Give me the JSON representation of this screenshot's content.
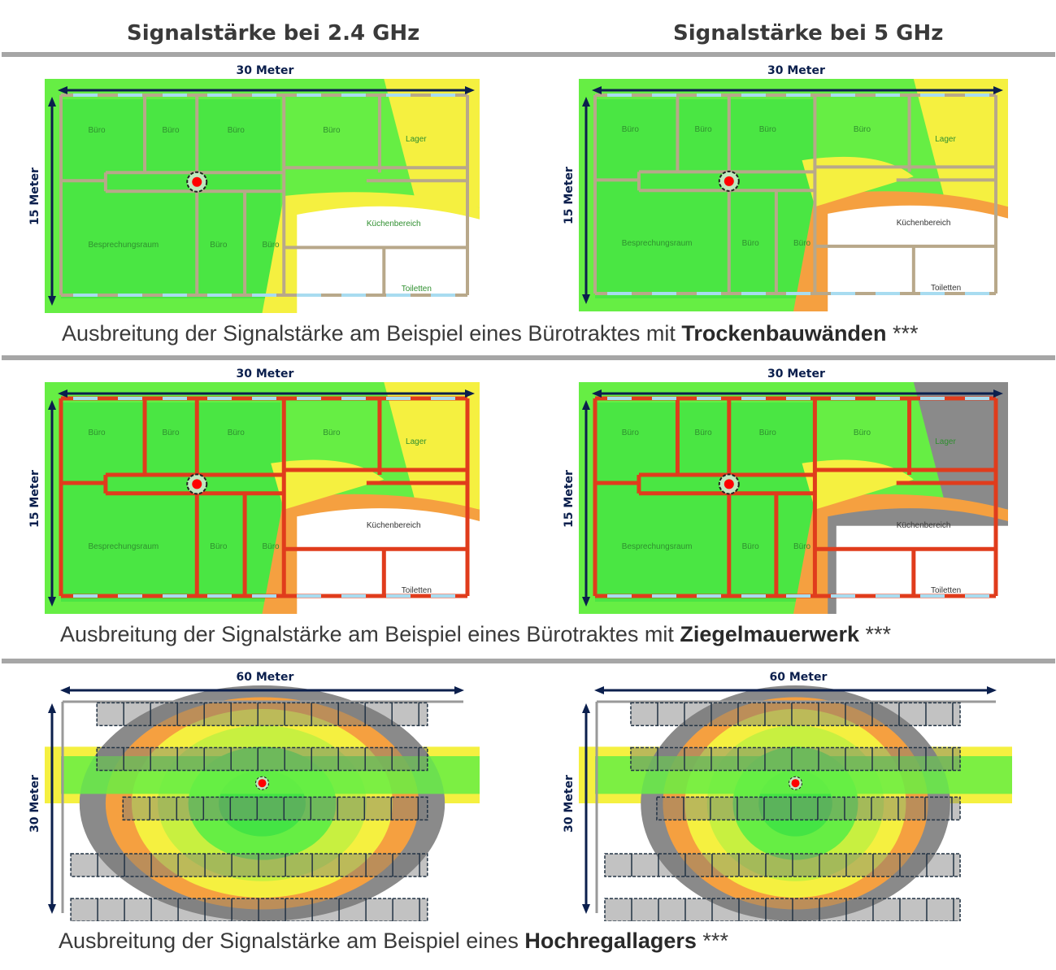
{
  "columns": {
    "left": "Signalstärke bei 2.4 GHz",
    "right": "Signalstärke bei 5 GHz"
  },
  "colors": {
    "strong": "#44e444",
    "good": "#66ee44",
    "medium": "#c8f040",
    "weak": "#f5f040",
    "poor": "#f5a040",
    "none": "#8a8a8a",
    "wall_drywall": "#b8a88a",
    "wall_brick": "#e03c1c",
    "ap": "#ff0000",
    "dimension": "#0b1f4d"
  },
  "rows": [
    {
      "caption_prefix": "Ausbreitung der Signalstärke am Beispiel eines Bürotraktes mit ",
      "caption_bold": "Trockenbauwänden",
      "caption_suffix": " ***",
      "width_label": "30 Meter",
      "height_label": "15 Meter",
      "left_rooms": [
        "Büro",
        "Büro",
        "Büro",
        "Büro",
        "Lager",
        "Küchenbereich",
        "Besprechungsraum",
        "Büro",
        "Büro",
        "Toiletten"
      ],
      "right_rooms": [
        "Büro",
        "Büro",
        "Büro",
        "Büro",
        "Lager",
        "Küchenbereich",
        "Besprechungsraum",
        "Büro",
        "Büro",
        "Toiletten"
      ]
    },
    {
      "caption_prefix": "Ausbreitung der Signalstärke am Beispiel eines Bürotraktes mit ",
      "caption_bold": "Ziegelmauerwerk",
      "caption_suffix": " ***",
      "width_label": "30 Meter",
      "height_label": "15 Meter",
      "left_rooms": [
        "Büro",
        "Büro",
        "Büro",
        "Büro",
        "Lager",
        "Küchenbereich",
        "Besprechungsraum",
        "Büro",
        "Büro",
        "Toiletten"
      ],
      "right_rooms": [
        "Büro",
        "Büro",
        "Büro",
        "Büro",
        "Lager",
        "Küchenbereich",
        "Besprechungsraum",
        "Büro",
        "Büro",
        "Toiletten"
      ]
    },
    {
      "caption_prefix": "Ausbreitung der Signalstärke am Beispiel eines ",
      "caption_bold": "Hochregallagers",
      "caption_suffix": " ***",
      "width_label": "60 Meter",
      "height_label": "30 Meter"
    }
  ]
}
